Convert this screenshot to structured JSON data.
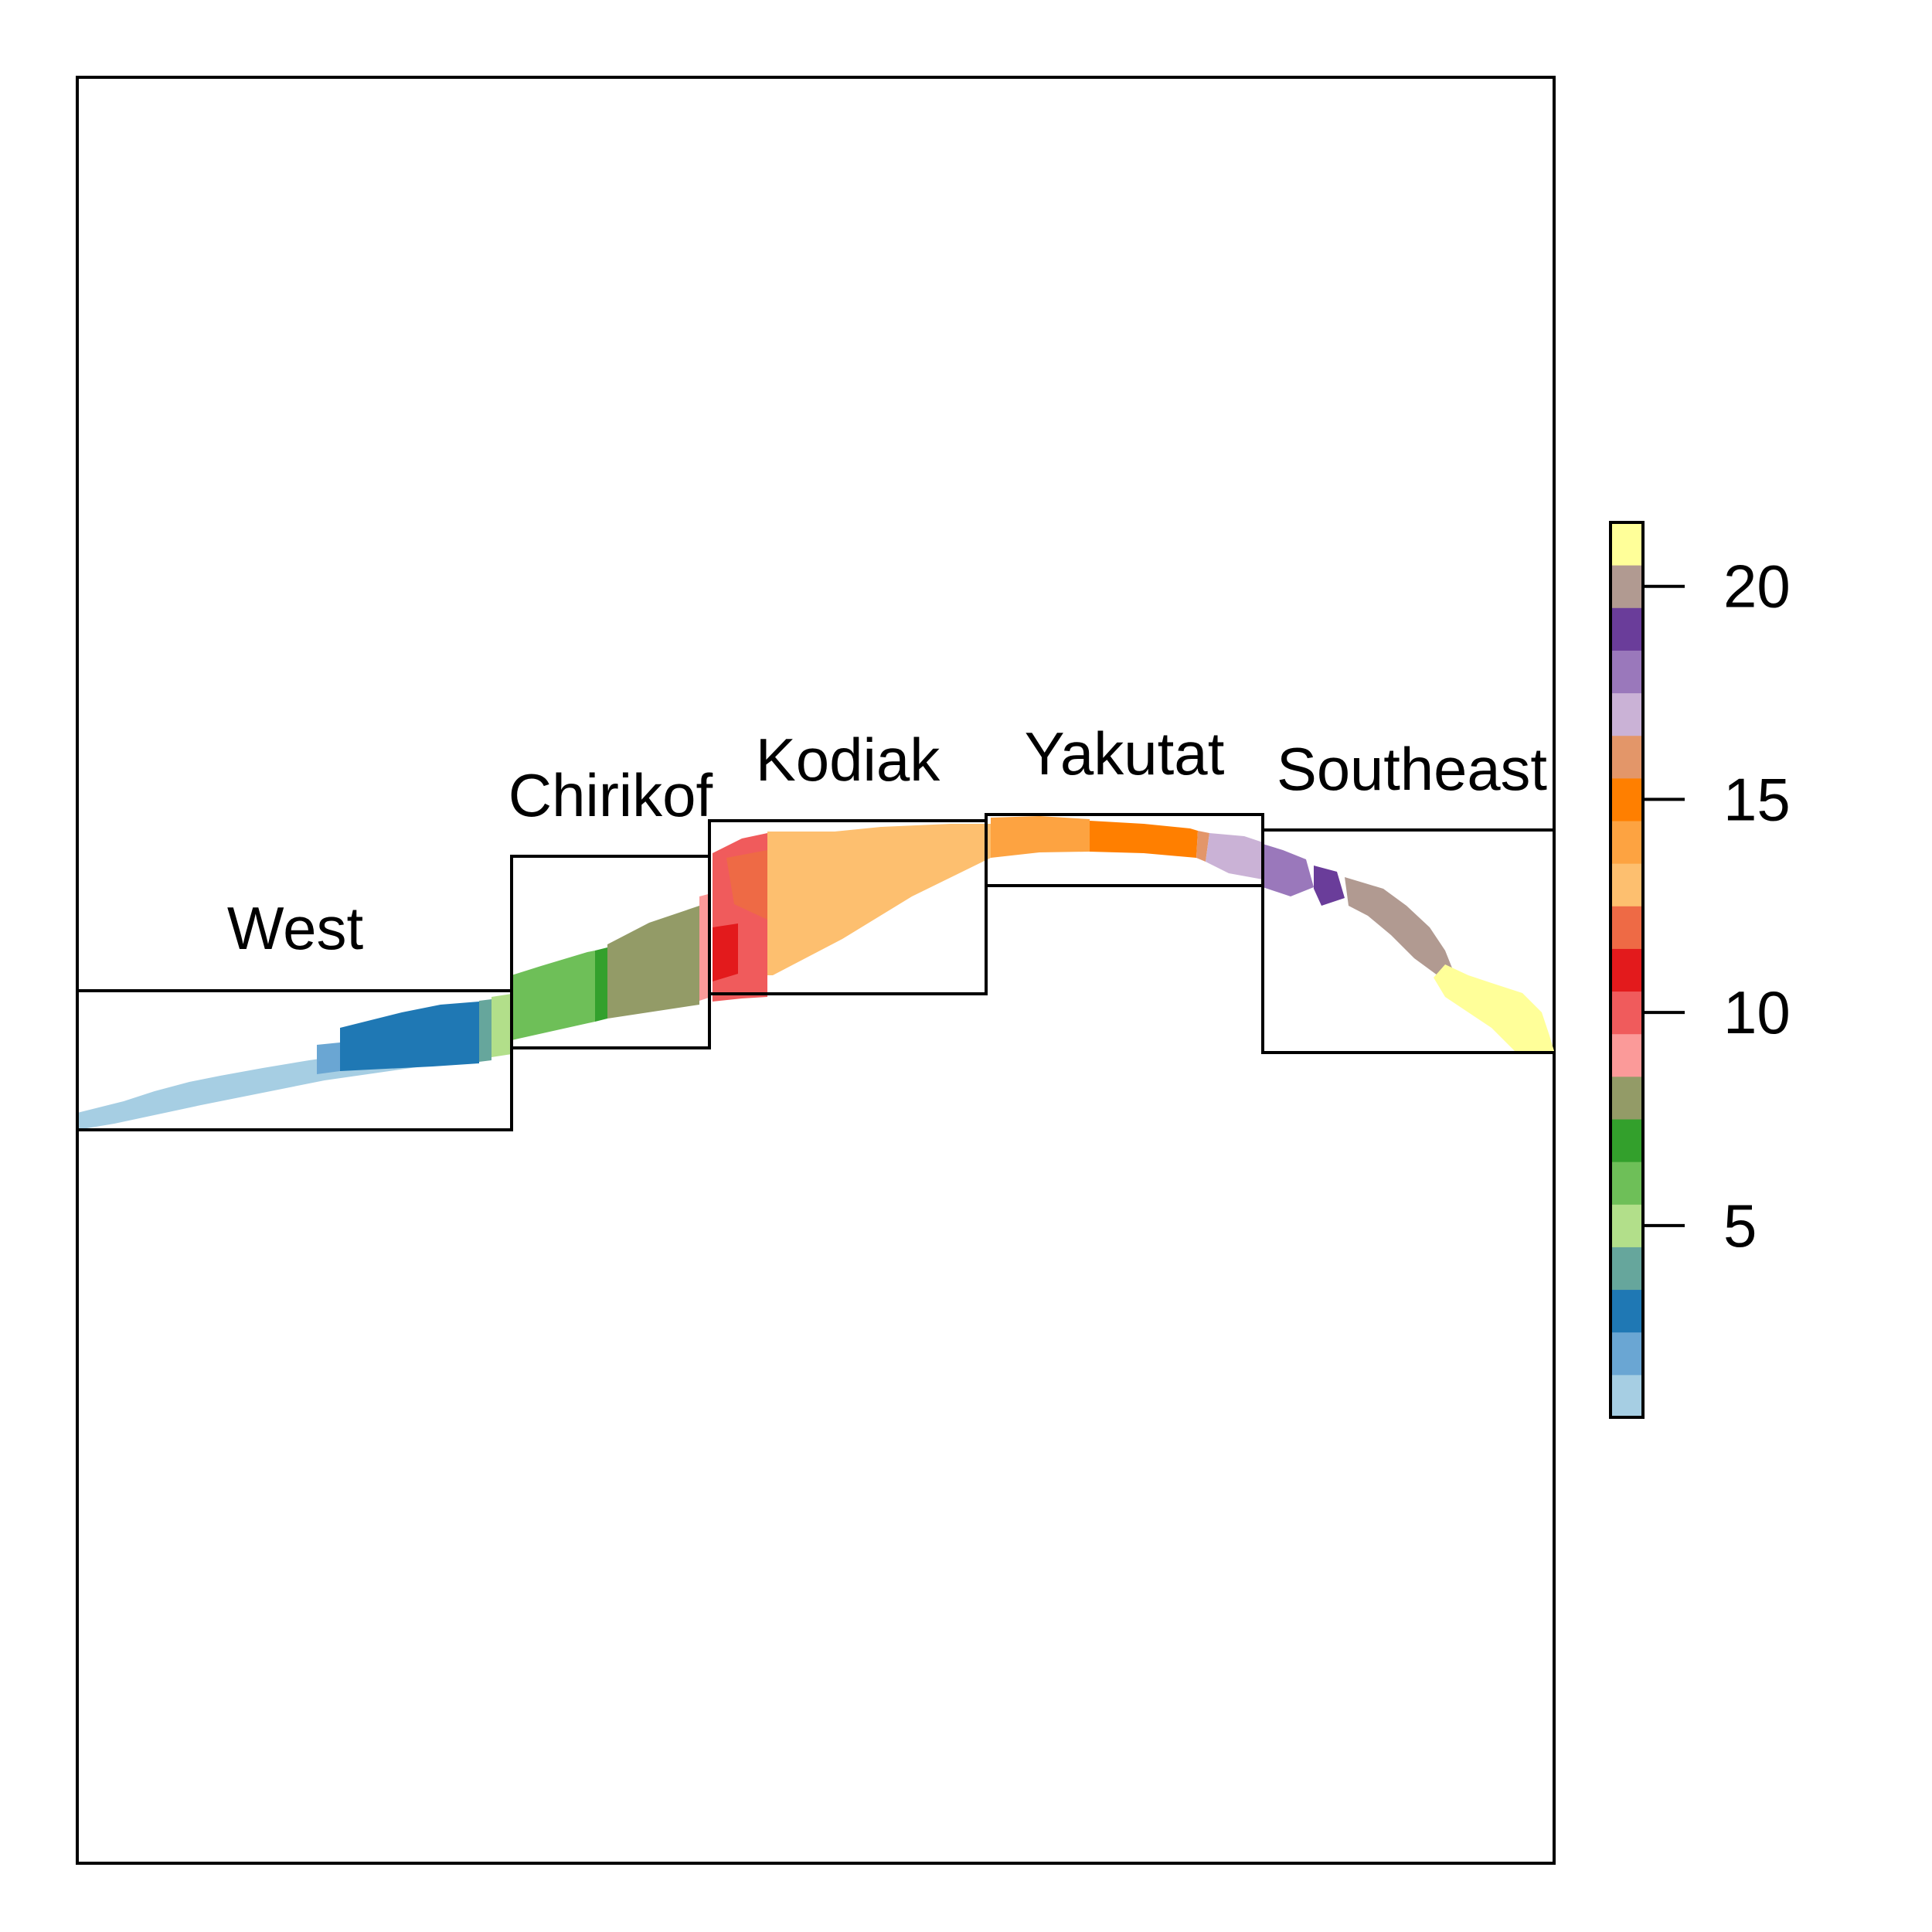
{
  "regions": [
    {
      "name": "West",
      "label": "West"
    },
    {
      "name": "Chirikof",
      "label": "Chirikof"
    },
    {
      "name": "Kodiak",
      "label": "Kodiak"
    },
    {
      "name": "Yakutat",
      "label": "Yakutat"
    },
    {
      "name": "Southeast",
      "label": "Southeast"
    }
  ],
  "legend": {
    "colors": [
      "#a6cee3",
      "#6aa6d3",
      "#1f78b4",
      "#66a69c",
      "#b2df8a",
      "#6ebf58",
      "#33a02c",
      "#939b67",
      "#fb9a99",
      "#f05b5c",
      "#e31a1c",
      "#ee6a45",
      "#fdbf6f",
      "#fda341",
      "#ff7f00",
      "#e39669",
      "#cab2d6",
      "#9a78bb",
      "#6a3d9a",
      "#b19a91",
      "#ffff99"
    ],
    "min": 1,
    "max": 21,
    "ticks": [
      {
        "value": 5,
        "label": "5"
      },
      {
        "value": 10,
        "label": "10"
      },
      {
        "value": 15,
        "label": "15"
      },
      {
        "value": 20,
        "label": "20"
      }
    ]
  }
}
